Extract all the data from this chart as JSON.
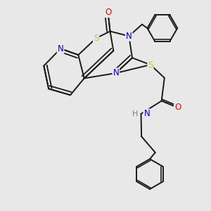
{
  "background_color": "#e8e8e8",
  "bond_color": "#1a1a1a",
  "atom_colors": {
    "N": "#0000cc",
    "S": "#cccc00",
    "O": "#ff0000",
    "H": "#708090",
    "C": "#1a1a1a"
  }
}
